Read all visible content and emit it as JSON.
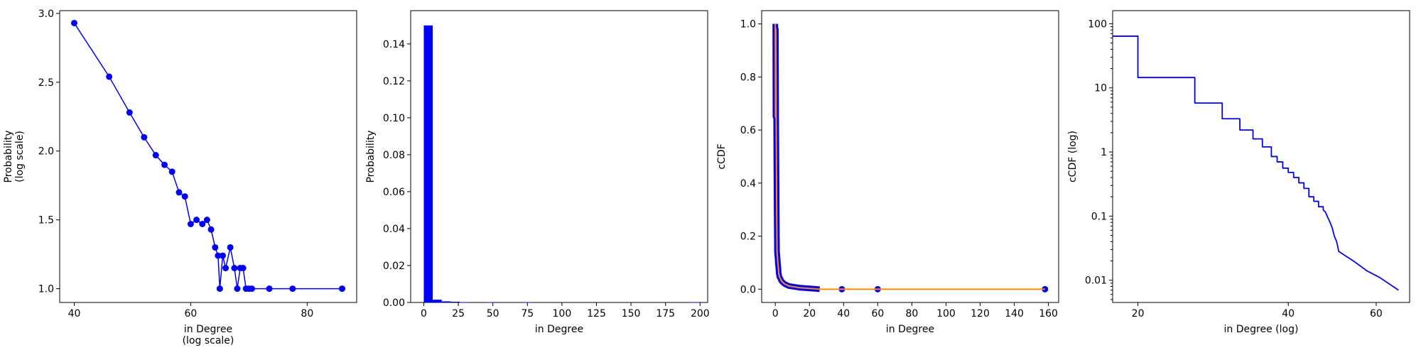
{
  "chart_data": [
    {
      "type": "line",
      "xlabel": [
        "in Degree",
        "(log scale)"
      ],
      "ylabel": [
        "Probability",
        "(log scale)"
      ],
      "xlim": [
        37.5,
        88.5
      ],
      "ylim": [
        0.9,
        3.02
      ],
      "xticks": [
        40,
        60,
        80
      ],
      "yticks": [
        1.0,
        1.5,
        2.0,
        2.5,
        3.0
      ],
      "yticklabels": [
        "1.0",
        "1.5",
        "2.0",
        "2.5",
        "3.0"
      ],
      "color": "#0000ff",
      "x": [
        40,
        46,
        49.5,
        52,
        54,
        55.5,
        56.8,
        58,
        59,
        60,
        61,
        62,
        62.8,
        63.5,
        64.2,
        64.7,
        65,
        65.5,
        66,
        66.8,
        67.5,
        68,
        68.5,
        69,
        69.5,
        70,
        70.5,
        73.5,
        77.5,
        86
      ],
      "y": [
        2.93,
        2.54,
        2.28,
        2.1,
        1.97,
        1.9,
        1.85,
        1.7,
        1.67,
        1.47,
        1.5,
        1.47,
        1.5,
        1.43,
        1.3,
        1.24,
        1.0,
        1.24,
        1.15,
        1.3,
        1.15,
        1.0,
        1.15,
        1.15,
        1.0,
        1.0,
        1.0,
        1.0,
        1.0,
        1.0
      ]
    },
    {
      "type": "bar",
      "xlabel": [
        "in Degree"
      ],
      "ylabel": [
        "Probability"
      ],
      "xlim": [
        -9.5,
        205.5
      ],
      "ylim": [
        0,
        0.158
      ],
      "xticks": [
        0,
        25,
        50,
        75,
        100,
        125,
        150,
        175,
        200
      ],
      "yticks": [
        0.0,
        0.02,
        0.04,
        0.06,
        0.08,
        0.1,
        0.12,
        0.14
      ],
      "yticklabels": [
        "0.00",
        "0.02",
        "0.04",
        "0.06",
        "0.08",
        "0.10",
        "0.12",
        "0.14"
      ],
      "color": "#0000ff",
      "bin_width": 6.5,
      "bins": [
        0,
        6.5,
        13,
        19.5,
        26,
        45.5,
        71.5,
        192.5
      ],
      "values": [
        0.15,
        0.0015,
        0.0006,
        0.0004,
        0.0002,
        0.0002,
        0.0002,
        0.0002
      ]
    },
    {
      "type": "line",
      "xlabel": [
        "in Degree"
      ],
      "ylabel": [
        "cCDF"
      ],
      "xlim": [
        -8,
        166
      ],
      "ylim": [
        -0.05,
        1.05
      ],
      "xticks": [
        0,
        20,
        40,
        60,
        80,
        100,
        120,
        140,
        160
      ],
      "yticks": [
        0.0,
        0.2,
        0.4,
        0.6,
        0.8,
        1.0
      ],
      "yticklabels": [
        "0.0",
        "0.2",
        "0.4",
        "0.6",
        "0.8",
        "1.0"
      ],
      "series": [
        {
          "color": "#0000ff",
          "x": [
            0,
            0.1,
            0.3,
            0.5,
            0.8,
            1,
            1.3,
            1.5,
            1.8,
            2,
            2.3,
            2.5,
            3,
            3.5,
            4,
            5,
            6,
            7,
            8,
            10,
            12,
            14,
            16,
            18,
            20,
            22,
            24,
            26
          ],
          "y": [
            1.0,
            0.65,
            0.98,
            0.65,
            0.3,
            0.14,
            0.12,
            0.1,
            0.08,
            0.06,
            0.05,
            0.045,
            0.04,
            0.032,
            0.028,
            0.022,
            0.018,
            0.015,
            0.012,
            0.01,
            0.008,
            0.006,
            0.005,
            0.004,
            0.003,
            0.002,
            0.001,
            0.0
          ],
          "markers_x": [
            39,
            60,
            158
          ],
          "markers_y": [
            0,
            0,
            0
          ]
        },
        {
          "color": "#ff8c00",
          "x": [
            0,
            0.1,
            0.3,
            0.5,
            0.8,
            1,
            1.3,
            1.5,
            1.8,
            2,
            2.3,
            2.5,
            3,
            3.5,
            4,
            5,
            6,
            7,
            8,
            10,
            12,
            14,
            16,
            18,
            20,
            22,
            24,
            26,
            39,
            60,
            158
          ],
          "y": [
            1.0,
            0.65,
            0.98,
            0.65,
            0.3,
            0.14,
            0.12,
            0.1,
            0.08,
            0.06,
            0.05,
            0.045,
            0.04,
            0.032,
            0.028,
            0.022,
            0.018,
            0.015,
            0.012,
            0.01,
            0.008,
            0.006,
            0.005,
            0.004,
            0.003,
            0.002,
            0.001,
            0.0,
            0,
            0,
            0
          ]
        }
      ]
    },
    {
      "type": "line",
      "xlabel": [
        "in Degree (log)"
      ],
      "ylabel": [
        "cCDF (log)"
      ],
      "xscale": "log",
      "yscale": "log",
      "xlim": [
        17.8,
        70
      ],
      "ylim": [
        0.0045,
        160
      ],
      "xticks": [
        20,
        40,
        60
      ],
      "yticks": [
        0.01,
        0.1,
        1,
        10,
        100
      ],
      "yticklabels": [
        "0.01",
        "0.1",
        "1",
        "10",
        "100"
      ],
      "color": "#0000ff",
      "x": [
        17.8,
        20,
        20,
        26,
        26,
        29.5,
        29.5,
        32,
        32,
        34,
        34,
        35.5,
        35.5,
        37,
        37,
        38,
        38,
        39,
        39,
        40,
        40,
        41,
        41,
        42,
        42,
        43,
        43,
        44,
        44,
        45,
        45,
        46,
        46,
        47,
        47,
        47.5,
        48,
        48.5,
        49,
        49.5,
        50,
        50.5,
        54,
        57.5,
        61,
        66.5
      ],
      "y": [
        64,
        64,
        14.5,
        14.5,
        5.8,
        5.8,
        3.3,
        3.3,
        2.2,
        2.2,
        1.6,
        1.6,
        1.2,
        1.2,
        0.85,
        0.85,
        0.7,
        0.7,
        0.56,
        0.56,
        0.48,
        0.48,
        0.4,
        0.4,
        0.33,
        0.33,
        0.27,
        0.27,
        0.2,
        0.2,
        0.17,
        0.17,
        0.14,
        0.14,
        0.125,
        0.115,
        0.095,
        0.08,
        0.065,
        0.048,
        0.04,
        0.028,
        0.02,
        0.014,
        0.011,
        0.007
      ]
    }
  ]
}
